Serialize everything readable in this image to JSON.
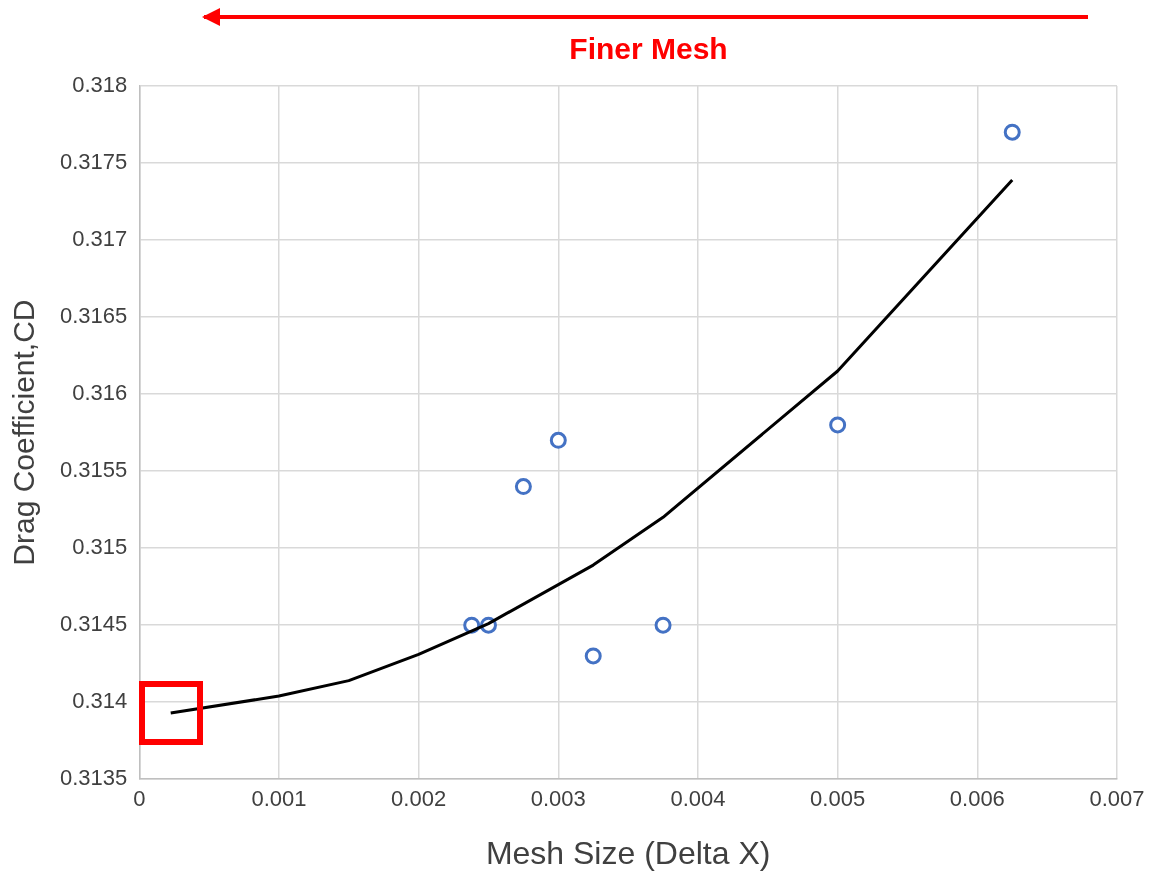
{
  "chart_data": {
    "type": "scatter",
    "xlabel": "Mesh Size (Delta X)",
    "ylabel": "Drag Coefficient,CD",
    "annotations": [
      "Finer Mesh"
    ],
    "xlim": [
      0,
      0.007
    ],
    "xticks": [
      0,
      0.001,
      0.002,
      0.003,
      0.004,
      0.005,
      0.006,
      0.007
    ],
    "ylim": [
      0.3135,
      0.318
    ],
    "yticks": [
      0.3135,
      0.314,
      0.3145,
      0.315,
      0.3155,
      0.316,
      0.3165,
      0.317,
      0.3175,
      0.318
    ],
    "grid": true,
    "legend": false,
    "series": [
      {
        "type": "scatter",
        "color": "#4472c4",
        "marker": "circle",
        "x": [
          0.00238,
          0.0025,
          0.00275,
          0.003,
          0.00325,
          0.00375,
          0.005,
          0.00625
        ],
        "values": [
          0.3145,
          0.3145,
          0.3154,
          0.3157,
          0.3143,
          0.3145,
          0.3158,
          0.3177
        ]
      },
      {
        "type": "line",
        "color": "#000000",
        "marker": "none",
        "x": [
          0.000225,
          0.001,
          0.0015,
          0.002,
          0.0025,
          0.00325,
          0.00375,
          0.005,
          0.00625
        ],
        "values": [
          0.31393,
          0.31404,
          0.31414,
          0.31431,
          0.31451,
          0.31489,
          0.3152,
          0.31615,
          0.31739
        ]
      }
    ]
  }
}
